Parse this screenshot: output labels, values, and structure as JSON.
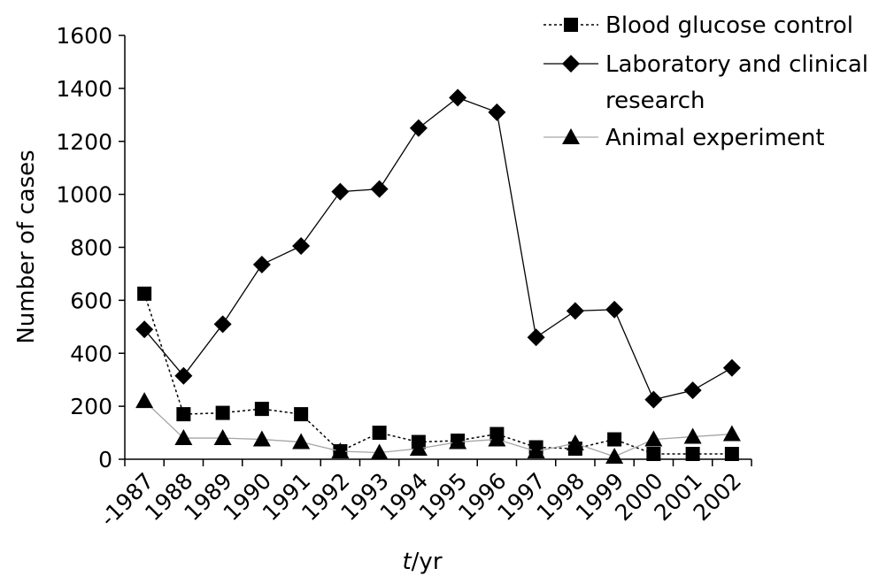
{
  "chart_data": {
    "type": "line",
    "xlabel_italic": "t",
    "xlabel_unit": "/yr",
    "ylabel": "Number of cases",
    "ylim": [
      0,
      1600
    ],
    "yticks": [
      0,
      200,
      400,
      600,
      800,
      1000,
      1200,
      1400,
      1600
    ],
    "grid": false,
    "legend_position": "top-right",
    "categories": [
      "-1987",
      "1988",
      "1989",
      "1990",
      "1991",
      "1992",
      "1993",
      "1994",
      "1995",
      "1996",
      "1997",
      "1998",
      "1999",
      "2000",
      "2001",
      "2002"
    ],
    "series": [
      {
        "name": "Blood glucose control",
        "legend_lines": [
          "Blood glucose control"
        ],
        "marker": "square",
        "line_style": "dotted",
        "color": "#000000",
        "values": [
          625,
          170,
          175,
          190,
          170,
          30,
          100,
          65,
          70,
          95,
          45,
          40,
          75,
          20,
          20,
          20
        ]
      },
      {
        "name": "Laboratory and clinical research",
        "legend_lines": [
          "Laboratory and clinical",
          "research"
        ],
        "marker": "diamond",
        "line_style": "solid",
        "color": "#000000",
        "values": [
          490,
          315,
          510,
          735,
          805,
          1010,
          1020,
          1250,
          1365,
          1310,
          460,
          560,
          565,
          225,
          260,
          345
        ]
      },
      {
        "name": "Animal experiment",
        "legend_lines": [
          "Animal experiment"
        ],
        "marker": "triangle",
        "line_style": "solid",
        "color": "#a6a6a6",
        "marker_color": "#000000",
        "values": [
          220,
          80,
          80,
          75,
          65,
          30,
          25,
          40,
          65,
          75,
          30,
          60,
          10,
          75,
          85,
          95
        ]
      }
    ]
  }
}
